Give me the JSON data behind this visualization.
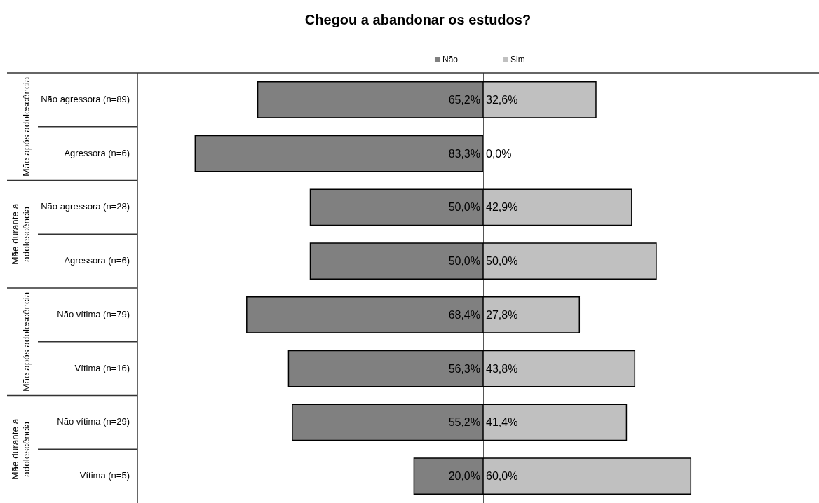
{
  "chart_data": [
    {
      "type": "bar",
      "orientation": "horizontal",
      "title": "Chegou a abandonar os estudos?",
      "categories": [
        "Não agressora (n=89)",
        "Agressora (n=6)",
        "Não agressora (n=28)",
        "Agressora (n=6)",
        "Não vítima (n=79)",
        "Vítima (n=16)",
        "Não vítima (n=29)",
        "Vítima (n=5)"
      ],
      "series": [
        {
          "name": "Não",
          "color": "#808080",
          "values": [
            65.2,
            83.3,
            50.0,
            50.0,
            68.4,
            56.3,
            55.2,
            20.0
          ],
          "value_labels": [
            "65,2%",
            "83,3%",
            "50,0%",
            "50,0%",
            "68,4%",
            "56,3%",
            "55,2%",
            "20,0%"
          ]
        }
      ],
      "xlim": [
        100,
        0
      ],
      "annotations": [
        "Mãe após adolescência",
        "Mãe durante a adolescência",
        "Mãe após adolescência",
        "Mãe durante a adolescência"
      ],
      "legend": "top right",
      "tick_labels": "y"
    },
    {
      "type": "bar",
      "orientation": "horizontal",
      "categories": [
        null,
        null,
        null,
        null,
        null,
        null,
        null,
        null
      ],
      "series": [
        {
          "name": "Sim",
          "color": "#c0c0c0",
          "values": [
            32.6,
            0.0,
            42.9,
            50.0,
            27.8,
            43.8,
            41.4,
            60.0
          ],
          "value_labels": [
            "32,6%",
            "0,0%",
            "42,9%",
            "50,0%",
            "27,8%",
            "43,8%",
            "41,4%",
            "60,0%"
          ]
        }
      ],
      "xlim": [
        0,
        97
      ],
      "legend": "top left",
      "tick_labels": false
    }
  ]
}
